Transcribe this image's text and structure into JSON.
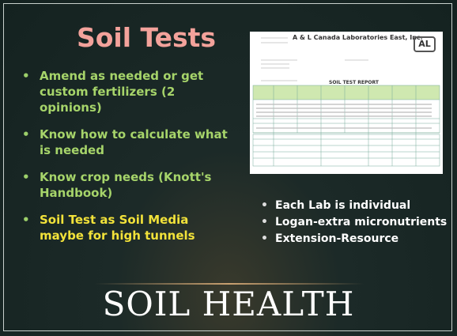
{
  "title": "Soil Tests",
  "left_bullets": [
    "Amend as needed or get custom fertilizers (2 opinions)",
    "Know how to calculate what is needed",
    "Know crop needs (Knott's Handbook)",
    "Soil Test as Soil Media maybe for high tunnels"
  ],
  "report": {
    "lab_name": "A & L Canada Laboratories East, Inc.",
    "logo": "AL",
    "heading": "SOIL TEST REPORT"
  },
  "right_bullets": [
    "Each Lab is individual",
    "Logan-extra micronutrients",
    "Extension-Resource"
  ],
  "footer": "SOIL HEALTH"
}
